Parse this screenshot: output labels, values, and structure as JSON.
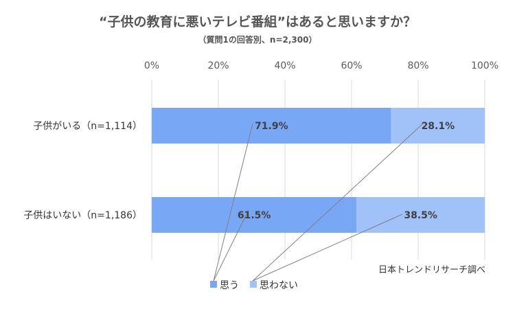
{
  "chart_data": {
    "type": "bar",
    "orientation": "horizontal",
    "stacked": true,
    "title": "“子供の教育に悪いテレビ番組”はあると思いますか？",
    "subtitle": "（質問1の回答別、n=2,300）",
    "categories": [
      "子供がいる（n=1,114）",
      "子供はいない（n=1,186）"
    ],
    "series": [
      {
        "name": "思う",
        "values": [
          71.9,
          61.5
        ],
        "labels": [
          "71.9%",
          "61.5%"
        ],
        "color": "#78a8f5"
      },
      {
        "name": "思わない",
        "values": [
          28.1,
          38.5
        ],
        "labels": [
          "28.1%",
          "38.5%"
        ],
        "color": "#a1c2f9"
      }
    ],
    "x_ticks": [
      "0%",
      "20%",
      "40%",
      "60%",
      "80%",
      "100%"
    ],
    "xlim": [
      0,
      100
    ],
    "grid": true,
    "legend_position": "bottom",
    "source_note": "日本トレンドリサーチ調べ"
  }
}
